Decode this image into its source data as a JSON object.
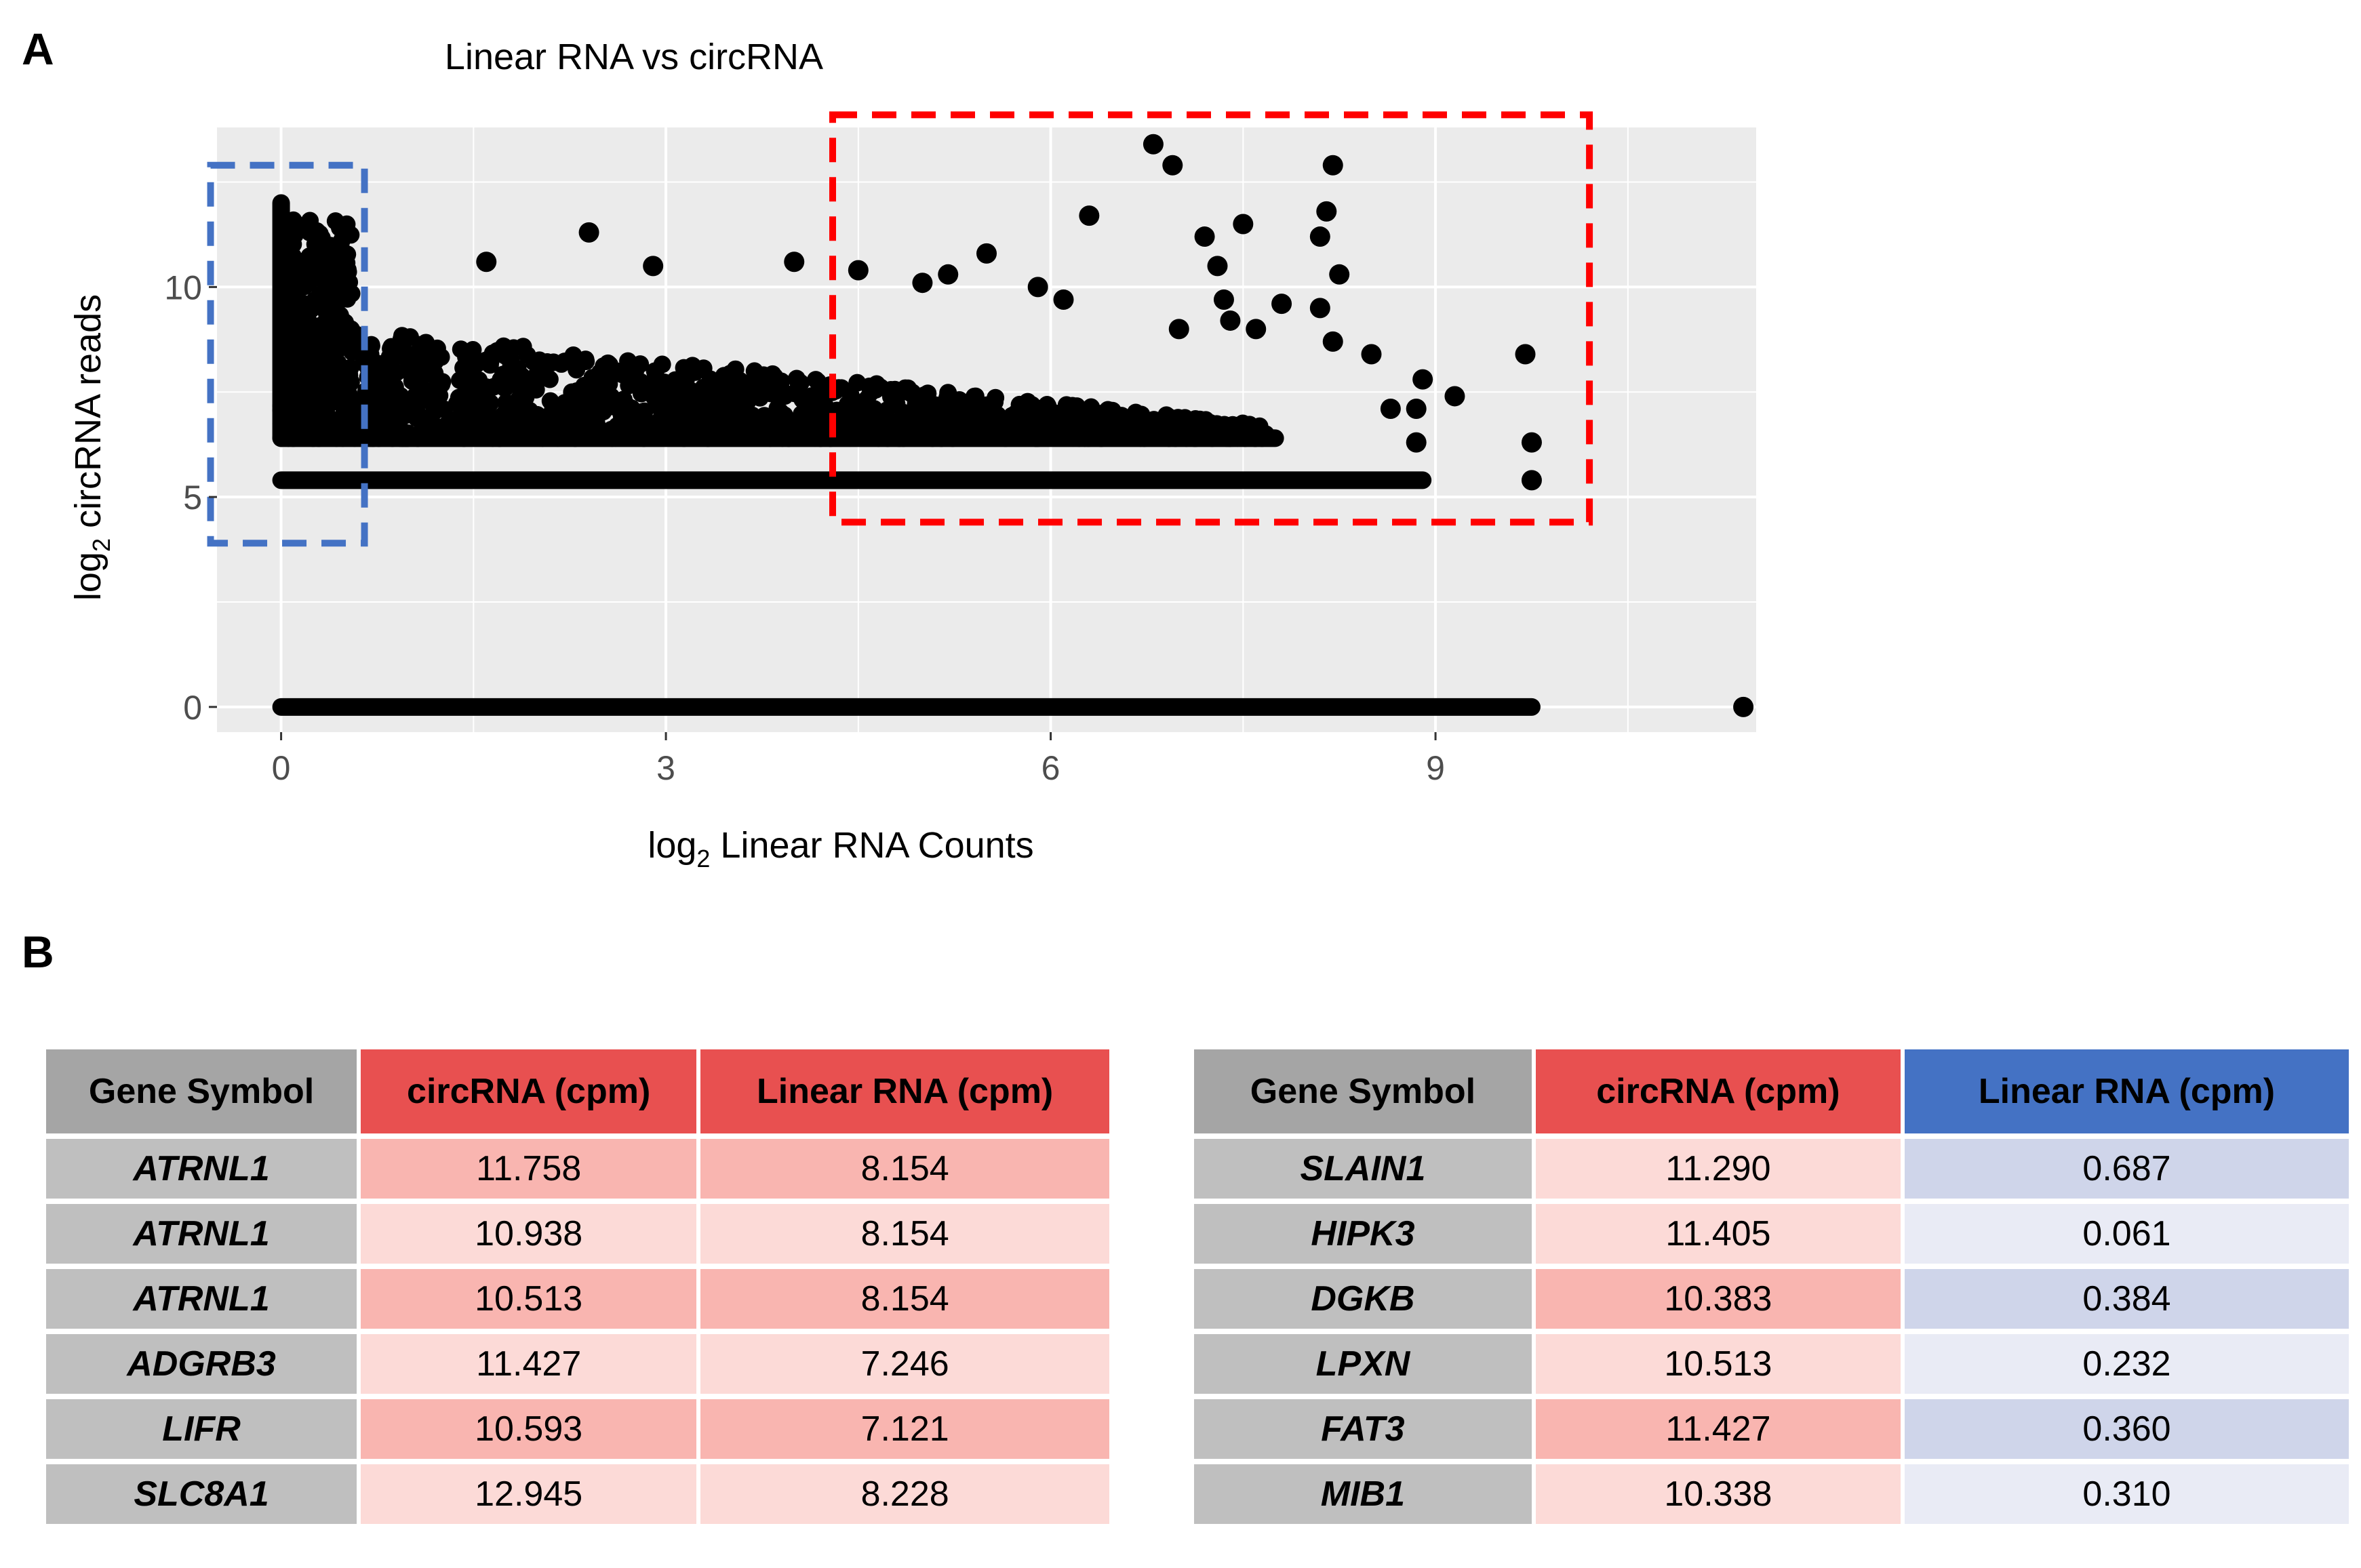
{
  "panels": {
    "a_label": "A",
    "b_label": "B"
  },
  "chart_data": {
    "type": "scatter",
    "title": "Linear RNA vs circRNA",
    "xlabel_prefix": "log",
    "xlabel_sub": "2",
    "xlabel_rest": " Linear RNA Counts",
    "ylabel_prefix": "log",
    "ylabel_sub": "2",
    "ylabel_rest": " circRNA reads",
    "xlim": [
      -0.5,
      11.5
    ],
    "ylim": [
      -0.6,
      13.8
    ],
    "xticks": [
      0,
      3,
      6,
      9
    ],
    "yticks": [
      0,
      5,
      10
    ],
    "grid": true,
    "series": [
      {
        "name": "outlier points",
        "x": [
          6.8,
          6.95,
          8.2,
          8.15,
          8.1,
          6.3,
          7.2,
          7.5,
          7.3,
          7.35,
          7.8,
          5.5,
          5.0,
          2.4,
          1.6,
          2.9,
          4.0,
          4.5,
          5.2,
          5.9,
          6.1,
          7.0,
          7.4,
          7.6,
          8.5,
          8.65,
          8.85,
          9.15,
          9.7,
          9.75,
          9.75,
          8.9,
          8.85,
          8.1,
          8.2,
          8.25,
          11.4
        ],
        "y": [
          13.4,
          12.9,
          12.9,
          11.8,
          11.2,
          11.7,
          11.2,
          11.5,
          10.5,
          9.7,
          9.6,
          10.8,
          10.1,
          11.3,
          10.6,
          10.5,
          10.6,
          10.4,
          10.3,
          10.0,
          9.7,
          9.0,
          9.2,
          9.0,
          8.4,
          7.1,
          6.3,
          7.4,
          8.4,
          6.3,
          5.4,
          7.8,
          7.1,
          9.5,
          8.7,
          10.3,
          0.0
        ]
      }
    ],
    "dense_bands": [
      {
        "name": "band y=0",
        "y": 0.0,
        "x_range": [
          0,
          9.75
        ]
      },
      {
        "name": "band y=5.4",
        "y": 5.4,
        "x_range": [
          0,
          8.9
        ]
      },
      {
        "name": "band y=6.4",
        "y": 6.4,
        "x_range": [
          0,
          7.75
        ]
      },
      {
        "name": "dense cloud x=0",
        "x": 0.0,
        "y_range": [
          6.4,
          12.0
        ]
      }
    ],
    "highlight_boxes": [
      {
        "name": "blue dashed box",
        "color": "#4472c4",
        "x_range": [
          -0.55,
          0.65
        ],
        "y_range": [
          3.9,
          12.9
        ]
      },
      {
        "name": "red dashed box",
        "color": "#ff0000",
        "x_range": [
          4.3,
          10.2
        ],
        "y_range": [
          4.4,
          14.1
        ]
      }
    ],
    "colors": {
      "panel": "#ebebeb",
      "grid": "#ffffff",
      "point": "#000000",
      "axis_text": "#4d4d4d"
    }
  },
  "table_left": {
    "headers": [
      "Gene Symbol",
      "circRNA (cpm)",
      "Linear RNA (cpm)"
    ],
    "header_colors": [
      "#a5a5a5",
      "#e85050",
      "#e85050"
    ],
    "rows": [
      [
        "ATRNL1",
        "11.758",
        "8.154"
      ],
      [
        "ATRNL1",
        "10.938",
        "8.154"
      ],
      [
        "ATRNL1",
        "10.513",
        "8.154"
      ],
      [
        "ADGRB3",
        "11.427",
        "7.246"
      ],
      [
        "LIFR",
        "10.593",
        "7.121"
      ],
      [
        "SLC8A1",
        "12.945",
        "8.228"
      ]
    ],
    "row_colors": [
      [
        "#bfbfbf",
        "#f9b5b0",
        "#f9b5b0"
      ],
      [
        "#bfbfbf",
        "#fcdad7",
        "#fcdad7"
      ],
      [
        "#bfbfbf",
        "#f9b5b0",
        "#f9b5b0"
      ],
      [
        "#bfbfbf",
        "#fcdad7",
        "#fcdad7"
      ],
      [
        "#bfbfbf",
        "#f9b5b0",
        "#f9b5b0"
      ],
      [
        "#bfbfbf",
        "#fcdad7",
        "#fcdad7"
      ]
    ]
  },
  "table_right": {
    "headers": [
      "Gene Symbol",
      "circRNA (cpm)",
      "Linear RNA (cpm)"
    ],
    "header_colors": [
      "#a5a5a5",
      "#e85050",
      "#4472c4"
    ],
    "rows": [
      [
        "SLAIN1",
        "11.290",
        "0.687"
      ],
      [
        "HIPK3",
        "11.405",
        "0.061"
      ],
      [
        "DGKB",
        "10.383",
        "0.384"
      ],
      [
        "LPXN",
        "10.513",
        "0.232"
      ],
      [
        "FAT3",
        "11.427",
        "0.360"
      ],
      [
        "MIB1",
        "10.338",
        "0.310"
      ]
    ],
    "row_colors": [
      [
        "#bfbfbf",
        "#fcdad7",
        "#cfd5ea"
      ],
      [
        "#bfbfbf",
        "#fcdad7",
        "#e9ebf5"
      ],
      [
        "#bfbfbf",
        "#f9b5b0",
        "#cfd5ea"
      ],
      [
        "#bfbfbf",
        "#fcdad7",
        "#e9ebf5"
      ],
      [
        "#bfbfbf",
        "#f9b5b0",
        "#cfd5ea"
      ],
      [
        "#bfbfbf",
        "#fcdad7",
        "#e9ebf5"
      ]
    ]
  }
}
